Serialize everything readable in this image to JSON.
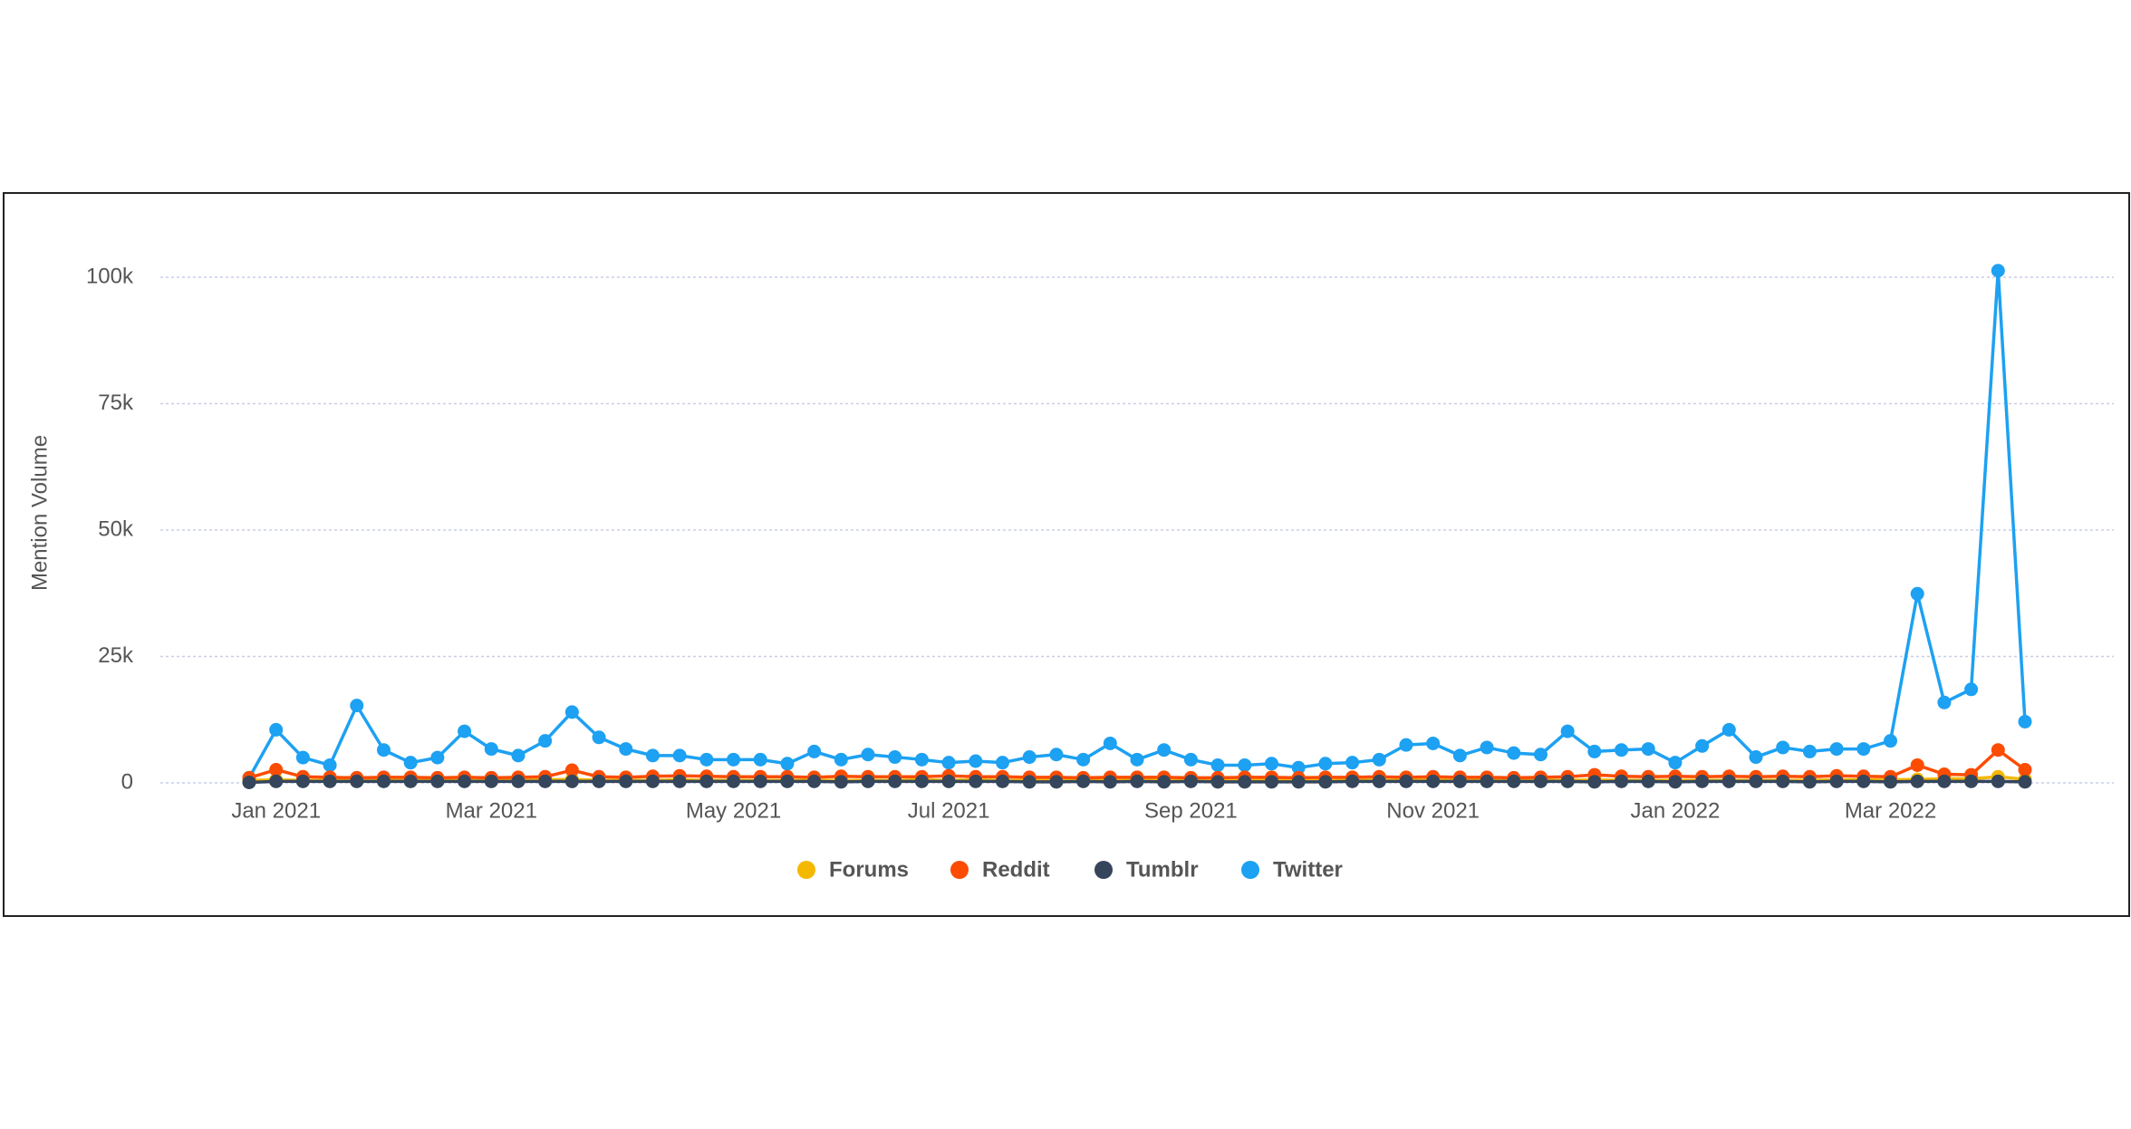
{
  "chart_data": {
    "type": "line",
    "y_label": "Mention Volume",
    "categories": [
      null,
      "Jan 2021",
      null,
      null,
      null,
      null,
      null,
      null,
      null,
      "Mar 2021",
      null,
      null,
      null,
      null,
      null,
      null,
      null,
      null,
      "May 2021",
      null,
      null,
      null,
      null,
      null,
      null,
      null,
      "Jul 2021",
      null,
      null,
      null,
      null,
      null,
      null,
      null,
      null,
      "Sep 2021",
      null,
      null,
      null,
      null,
      null,
      null,
      null,
      null,
      "Nov 2021",
      null,
      null,
      null,
      null,
      null,
      null,
      null,
      null,
      "Jan 2022",
      null,
      null,
      null,
      null,
      null,
      null,
      null,
      "Mar 2022",
      null,
      null,
      null,
      null,
      null
    ],
    "series": [
      {
        "name": "Forums",
        "color": "#f5b800",
        "values": [
          500,
          600,
          500,
          500,
          500,
          900,
          500,
          500,
          500,
          500,
          500,
          600,
          700,
          500,
          500,
          500,
          600,
          500,
          500,
          500,
          500,
          500,
          500,
          500,
          500,
          600,
          500,
          600,
          500,
          500,
          500,
          500,
          500,
          500,
          500,
          500,
          500,
          500,
          600,
          500,
          500,
          600,
          500,
          500,
          600,
          500,
          500,
          500,
          500,
          500,
          600,
          500,
          500,
          500,
          500,
          500,
          500,
          500,
          500,
          600,
          600,
          600,
          700,
          800,
          800,
          1200,
          700
        ]
      },
      {
        "name": "Reddit",
        "color": "#fc4c02",
        "values": [
          1000,
          2600,
          1200,
          1100,
          1000,
          1100,
          1100,
          1000,
          1100,
          1000,
          1100,
          1200,
          2500,
          1200,
          1100,
          1300,
          1400,
          1300,
          1200,
          1200,
          1200,
          1100,
          1300,
          1200,
          1200,
          1200,
          1400,
          1200,
          1200,
          1100,
          1100,
          1000,
          1100,
          1100,
          1100,
          1000,
          1000,
          1100,
          1100,
          1000,
          1100,
          1100,
          1200,
          1100,
          1200,
          1100,
          1100,
          1000,
          1100,
          1200,
          1600,
          1300,
          1200,
          1300,
          1200,
          1300,
          1200,
          1300,
          1200,
          1400,
          1300,
          1200,
          3500,
          1700,
          1600,
          6500,
          2600
        ]
      },
      {
        "name": "Tumblr",
        "color": "#35465c",
        "values": [
          100,
          300,
          300,
          300,
          300,
          300,
          300,
          300,
          300,
          300,
          300,
          300,
          300,
          300,
          300,
          300,
          300,
          300,
          300,
          300,
          300,
          300,
          200,
          300,
          300,
          300,
          300,
          300,
          300,
          200,
          200,
          300,
          200,
          300,
          200,
          300,
          200,
          200,
          200,
          200,
          200,
          300,
          300,
          300,
          300,
          300,
          300,
          300,
          300,
          300,
          200,
          300,
          300,
          200,
          300,
          300,
          300,
          300,
          200,
          300,
          300,
          200,
          300,
          300,
          300,
          300,
          200
        ]
      },
      {
        "name": "Twitter",
        "color": "#1da1f2",
        "values": [
          1000,
          10500,
          5000,
          3500,
          15300,
          6500,
          4000,
          5000,
          10200,
          6700,
          5400,
          8300,
          14000,
          9000,
          6700,
          5400,
          5400,
          4600,
          4600,
          4600,
          3800,
          6200,
          4600,
          5600,
          5100,
          4600,
          4000,
          4300,
          4000,
          5100,
          5600,
          4600,
          7800,
          4600,
          6500,
          4600,
          3500,
          3500,
          3800,
          3000,
          3800,
          4000,
          4600,
          7500,
          7800,
          5400,
          7000,
          5900,
          5600,
          10200,
          6200,
          6500,
          6700,
          4000,
          7300,
          10500,
          5100,
          7000,
          6200,
          6700,
          6700,
          8300,
          37400,
          15900,
          18500,
          101300,
          12100
        ]
      }
    ],
    "ylim": [
      0,
      110000
    ],
    "yticks": [
      0,
      {
        "value": 25000,
        "label": "25k"
      },
      {
        "value": 50000,
        "label": "50k"
      },
      {
        "value": 75000,
        "label": "75k"
      },
      {
        "value": 100000,
        "label": "100k"
      }
    ],
    "grid": true,
    "legend": "bottom"
  }
}
